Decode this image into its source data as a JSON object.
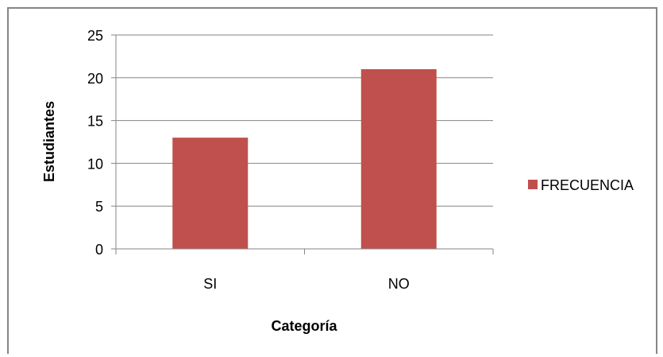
{
  "chart_data": {
    "type": "bar",
    "title": "",
    "categories": [
      "SI",
      "NO"
    ],
    "series": [
      {
        "name": "FRECUENCIA",
        "values": [
          13,
          21
        ],
        "color": "#C0504D"
      }
    ],
    "xlabel": "Categoría",
    "ylabel": "Estudiantes",
    "ylim": [
      0,
      25
    ],
    "yticks": [
      0,
      5,
      10,
      15,
      20,
      25
    ],
    "grid": true,
    "legend_position": "right"
  }
}
